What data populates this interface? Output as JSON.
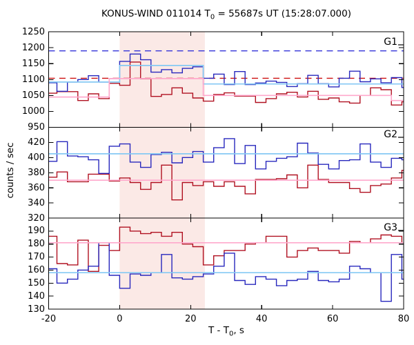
{
  "title": {
    "prefix": "KONUS-WIND 011014 T",
    "sub": "0",
    "suffix": " = 55687s UT (15:28:07.000)"
  },
  "axes": {
    "ylabel": "counts / sec",
    "xlabel_prefix": "T - T",
    "xlabel_sub": "0",
    "xlabel_suffix": ", s"
  },
  "chart_data": {
    "type": "step-histogram",
    "title": "KONUS-WIND 011014 T0 = 55687s UT (15:28:07.000)",
    "xlabel": "T - T0, s",
    "ylabel": "counts / sec",
    "grid": false,
    "x": {
      "lim": [
        -20,
        80
      ],
      "ticks": [
        -20,
        0,
        20,
        40,
        60,
        80
      ],
      "bin_edges": [
        -20,
        -17.66,
        -14.72,
        -11.78,
        -8.83,
        -5.89,
        -2.94,
        0,
        2.94,
        5.89,
        8.83,
        11.78,
        14.72,
        17.66,
        20.61,
        23.55,
        26.5,
        29.44,
        32.38,
        35.33,
        38.27,
        41.22,
        44.16,
        47.1,
        50.05,
        52.99,
        55.94,
        58.88,
        61.82,
        64.77,
        67.71,
        70.66,
        73.6,
        76.54,
        79.49,
        80
      ]
    },
    "shaded_region": {
      "range": [
        0,
        24
      ],
      "color": "#fbe9e6"
    },
    "panels": [
      {
        "label": "G1",
        "ylim": [
          950,
          1250
        ],
        "yticks": [
          950,
          1000,
          1050,
          1100,
          1150,
          1200,
          1250
        ],
        "series": [
          {
            "name": "red-curve",
            "color": "#b01020",
            "values": [
              1057,
              1062,
              1062,
              1034,
              1055,
              1040,
              1088,
              1082,
              1155,
              1102,
              1047,
              1053,
              1074,
              1057,
              1042,
              1032,
              1053,
              1058,
              1048,
              1048,
              1028,
              1040,
              1055,
              1060,
              1045,
              1063,
              1038,
              1042,
              1030,
              1026,
              1050,
              1074,
              1068,
              1020,
              1030
            ]
          },
          {
            "name": "blue-curve",
            "color": "#2727bd",
            "values": [
              1090,
              1063,
              1092,
              1100,
              1112,
              1092,
              1103,
              1157,
              1180,
              1162,
              1123,
              1131,
              1121,
              1135,
              1140,
              1104,
              1117,
              1084,
              1125,
              1084,
              1089,
              1095,
              1091,
              1078,
              1087,
              1113,
              1087,
              1077,
              1104,
              1126,
              1093,
              1102,
              1090,
              1106,
              1075
            ]
          }
        ],
        "levels": [
          {
            "name": "blue-dashed-background",
            "color": "#3434d9",
            "dash": true,
            "segments": [
              {
                "x": [
                  -20,
                  80
                ],
                "y": 1190
              }
            ]
          },
          {
            "name": "red-dashed-background",
            "color": "#cd0e0e",
            "dash": true,
            "segments": [
              {
                "x": [
                  -20,
                  80
                ],
                "y": 1104
              }
            ]
          },
          {
            "name": "cyan-level",
            "color": "#85c9f4",
            "dash": false,
            "segments": [
              {
                "x": [
                  -20,
                  0
                ],
                "y": 1092
              },
              {
                "x": [
                  0,
                  23.55
                ],
                "y": 1144
              },
              {
                "x": [
                  23.55,
                  80
                ],
                "y": 1086
              }
            ]
          },
          {
            "name": "pink-level",
            "color": "#ffa8cc",
            "dash": false,
            "segments": [
              {
                "x": [
                  -20,
                  -2.94
                ],
                "y": 1045
              },
              {
                "x": [
                  -2.94,
                  23.55
                ],
                "y": 1103
              },
              {
                "x": [
                  23.55,
                  76.54
                ],
                "y": 1050
              },
              {
                "x": [
                  76.54,
                  80
                ],
                "y": 1034
              }
            ]
          }
        ]
      },
      {
        "label": "G2",
        "ylim": [
          320,
          440
        ],
        "yticks": [
          320,
          340,
          360,
          380,
          400,
          420
        ],
        "series": [
          {
            "name": "red-curve",
            "color": "#b01020",
            "values": [
              374,
              381,
              368,
              368,
              378,
              378,
              369,
              373,
              367,
              358,
              367,
              390,
              344,
              367,
              363,
              368,
              362,
              368,
              362,
              352,
              371,
              371,
              372,
              377,
              360,
              390,
              371,
              367,
              367,
              359,
              354,
              363,
              365,
              373,
              383
            ]
          },
          {
            "name": "blue-curve",
            "color": "#2727bd",
            "values": [
              395,
              421,
              402,
              401,
              397,
              379,
              415,
              418,
              394,
              387,
              404,
              407,
              393,
              400,
              408,
              394,
              413,
              425,
              392,
              416,
              385,
              395,
              399,
              401,
              419,
              406,
              391,
              385,
              396,
              397,
              418,
              394,
              387,
              399,
              397
            ]
          }
        ],
        "levels": [
          {
            "name": "cyan-level",
            "color": "#85c9f4",
            "dash": false,
            "segments": [
              {
                "x": [
                  -20,
                  80
                ],
                "y": 405
              }
            ]
          },
          {
            "name": "pink-level",
            "color": "#ffa8cc",
            "dash": false,
            "segments": [
              {
                "x": [
                  -20,
                  80
                ],
                "y": 370
              }
            ]
          }
        ]
      },
      {
        "label": "G3",
        "ylim": [
          130,
          200
        ],
        "yticks": [
          130,
          140,
          150,
          160,
          170,
          180,
          190
        ],
        "series": [
          {
            "name": "red-curve",
            "color": "#b01020",
            "values": [
              186,
              165,
              164,
              183,
              159,
              179,
              175,
              193,
              190,
              188,
              189,
              186,
              189,
              180,
              178,
              164,
              171,
              175,
              175,
              180,
              181,
              186,
              186,
              170,
              175,
              177,
              175,
              175,
              173,
              182,
              181,
              184,
              187,
              186,
              181
            ]
          },
          {
            "name": "blue-curve",
            "color": "#2727bd",
            "values": [
              161,
              150,
              153,
              160,
              163,
              181,
              156,
              146,
              157,
              156,
              158,
              172,
              154,
              153,
              155,
              157,
              163,
              173,
              152,
              149,
              155,
              153,
              148,
              152,
              153,
              159,
              152,
              151,
              153,
              163,
              161,
              158,
              136,
              172,
              153
            ]
          }
        ],
        "levels": [
          {
            "name": "cyan-level",
            "color": "#85c9f4",
            "dash": false,
            "segments": [
              {
                "x": [
                  -20,
                  80
                ],
                "y": 158
              }
            ]
          },
          {
            "name": "pink-level",
            "color": "#ffa8cc",
            "dash": false,
            "segments": [
              {
                "x": [
                  -20,
                  80
                ],
                "y": 181
              }
            ]
          }
        ]
      }
    ]
  }
}
